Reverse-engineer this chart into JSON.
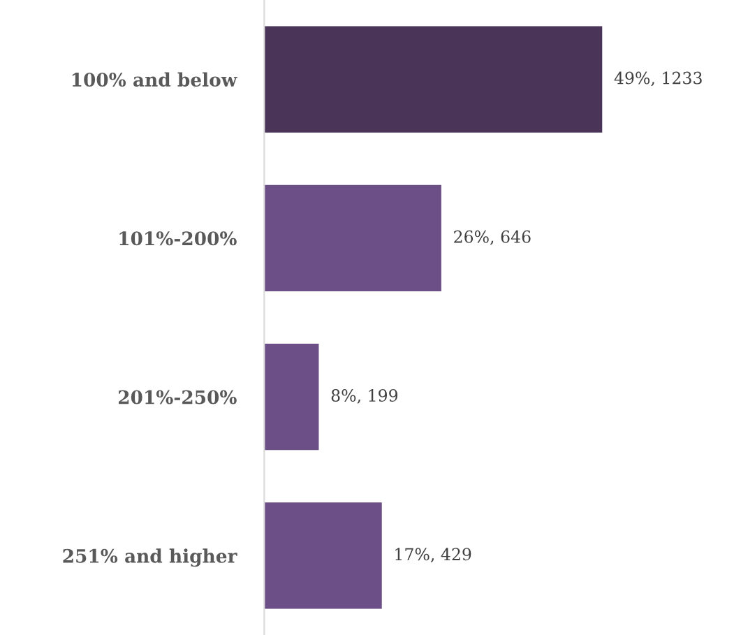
{
  "chart_data": {
    "type": "bar",
    "orientation": "horizontal",
    "categories": [
      "100% and below",
      "101%-200%",
      "201%-250%",
      "251% and higher"
    ],
    "values": [
      1233,
      646,
      199,
      429
    ],
    "colors": [
      "#4a3558",
      "#6c4f86",
      "#6c4f86",
      "#6c4f86"
    ],
    "value_labels": [
      "49%, 1233",
      "26%, 646",
      "8%, 199",
      "17%, 429"
    ],
    "grid": false,
    "legend": false
  }
}
